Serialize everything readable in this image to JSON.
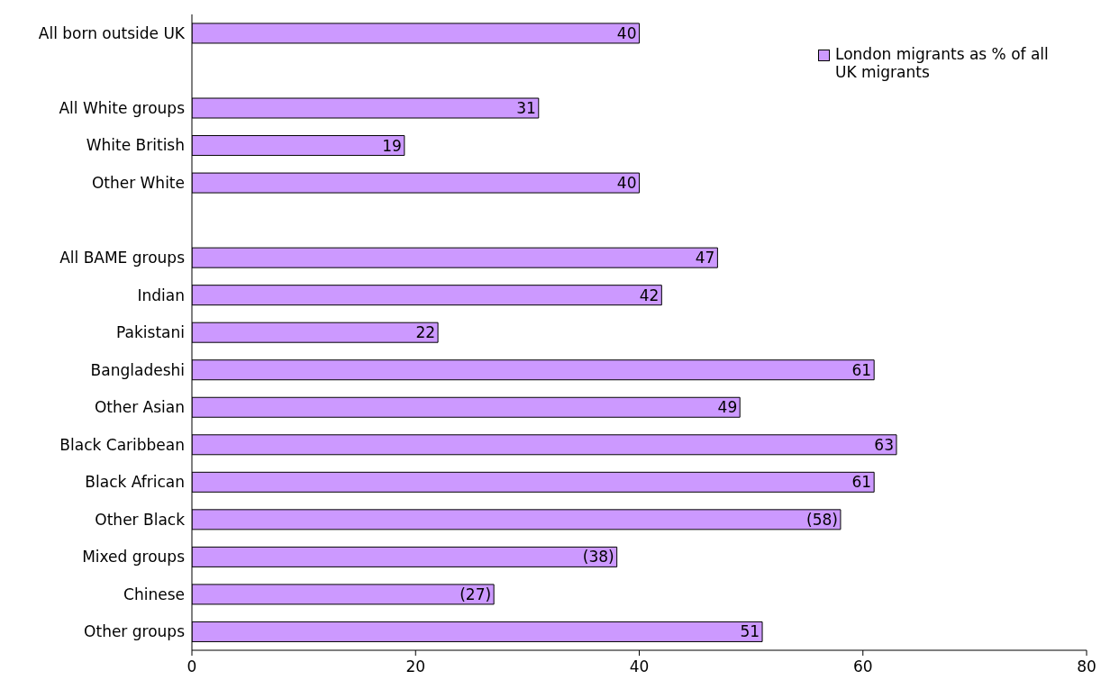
{
  "chart_data": {
    "type": "bar",
    "orientation": "horizontal",
    "categories": [
      "All born outside UK",
      null,
      "All White groups",
      "White British",
      "Other White",
      null,
      "All BAME groups",
      "Indian",
      "Pakistani",
      "Bangladeshi",
      "Other Asian",
      "Black Caribbean",
      "Black African",
      "Other Black",
      "Mixed groups",
      "Chinese",
      "Other groups"
    ],
    "series": [
      {
        "name": "London migrants as % of all UK migrants",
        "color": "#cc99ff",
        "values": [
          40,
          null,
          31,
          19,
          40,
          null,
          47,
          42,
          22,
          61,
          49,
          63,
          61,
          58,
          38,
          27,
          51
        ],
        "value_labels": [
          "40",
          null,
          "31",
          "19",
          "40",
          null,
          "47",
          "42",
          "22",
          "61",
          "49",
          "63",
          "61",
          "(58)",
          "(38)",
          "(27)",
          "51"
        ]
      }
    ],
    "xlim": [
      0,
      80
    ],
    "xticks": [
      0,
      20,
      40,
      60,
      80
    ],
    "grid": false,
    "legend": "top right"
  }
}
